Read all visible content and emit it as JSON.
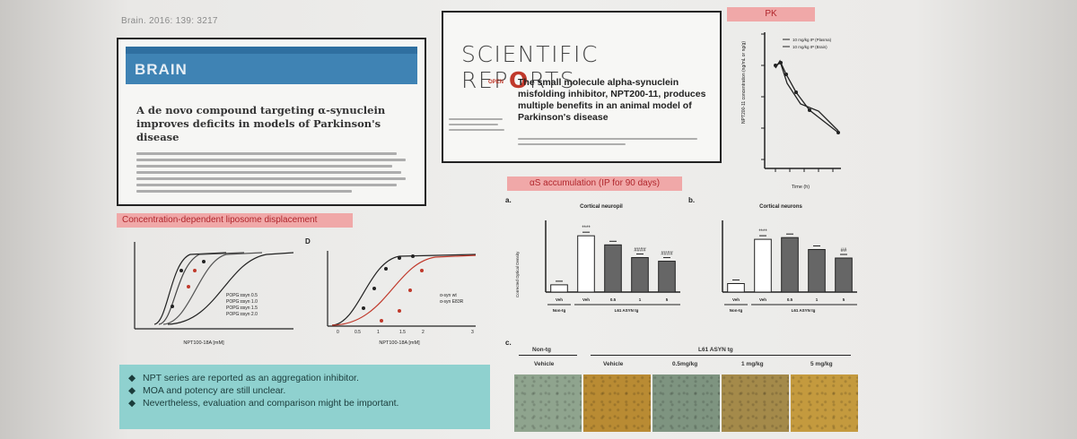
{
  "citation": "Brain. 2016: 139: 3217",
  "brain_card": {
    "journal": "BRAIN",
    "title": "A de novo compound targeting α-synuclein improves deficits in models of Parkinson's disease"
  },
  "sr_card": {
    "logo_a": "SCIENTIFIC REP",
    "logo_b": "O",
    "logo_c": "RTS",
    "open": "OPEN",
    "title": "The small molecule alpha-synuclein misfolding inhibitor, NPT200-11, produces multiple benefits in an animal model of Parkinson's disease"
  },
  "pk_tag": "PK",
  "lipo_tag": "Concentration-dependent liposome displacement",
  "as_tag": "αS accumulation (IP for 90 days)",
  "panel_letters": {
    "d": "D",
    "a": "a.",
    "b": "b.",
    "c": "c."
  },
  "lipo_left": {
    "xlabel": "NPT100-18A [mM]",
    "legend": [
      "POPG:αsyn 0.5",
      "POPG:αsyn 1.0",
      "POPG:αsyn 1.5",
      "POPG:αsyn 2.0"
    ]
  },
  "lipo_right": {
    "xlabel": "NPT100-18A [mM]",
    "ticks": [
      "0",
      "0.5",
      "1",
      "1.5",
      "2",
      "3"
    ],
    "legend": [
      "α-syn wt",
      "α-syn E83R"
    ]
  },
  "chart_a": {
    "title": "Cortical neuropil",
    "ylabel": "Corrected Optical Density",
    "groups": [
      "Veh",
      "Veh",
      "0.5",
      "1",
      "5"
    ],
    "group_labels": [
      "Non-tg",
      "L61 ASYN tg"
    ],
    "sig": [
      "****",
      "",
      "####",
      "####"
    ]
  },
  "chart_b": {
    "title": "Cortical neurons",
    "groups": [
      "Veh",
      "Veh",
      "0.5",
      "1",
      "5"
    ],
    "group_labels": [
      "Non-tg",
      "L61 ASYN tg"
    ],
    "sig": [
      "****",
      "",
      "",
      "##"
    ]
  },
  "micro": {
    "head_nontg": "Non-tg",
    "head_tg": "L61 ASYN tg",
    "cols": [
      "Vehicle",
      "Vehicle",
      "0.5mg/kg",
      "1 mg/kg",
      "5 mg/kg"
    ],
    "colors": [
      "#8fa48e",
      "#b98b33",
      "#7e9480",
      "#a48a4a",
      "#c49a3e"
    ]
  },
  "pk_chart": {
    "legend": [
      "10 mg/kg IP (Plasma)",
      "10 mg/kg IP (Brain)"
    ],
    "xlabel": "Time (h)",
    "ylabel": "NPT200-11 concentration (ng/mL or ng/g)"
  },
  "bullets": [
    "NPT series are reported as an aggregation inhibitor.",
    "MOA and potency are still unclear.",
    "Nevertheless, evaluation and comparison might be important."
  ],
  "chart_data": [
    {
      "type": "bar",
      "title": "Cortical neuropil",
      "categories": [
        "Non-tg Veh",
        "L61 ASYN tg Veh",
        "L61 ASYN tg 0.5",
        "L61 ASYN tg 1",
        "L61 ASYN tg 5"
      ],
      "values": [
        8,
        62,
        52,
        38,
        34
      ],
      "ylim": [
        0,
        75
      ]
    },
    {
      "type": "bar",
      "title": "Cortical neurons",
      "categories": [
        "Non-tg Veh",
        "L61 ASYN tg Veh",
        "L61 ASYN tg 0.5",
        "L61 ASYN tg 1",
        "L61 ASYN tg 5"
      ],
      "values": [
        10,
        62,
        64,
        50,
        40
      ],
      "ylim": [
        0,
        80
      ]
    }
  ]
}
